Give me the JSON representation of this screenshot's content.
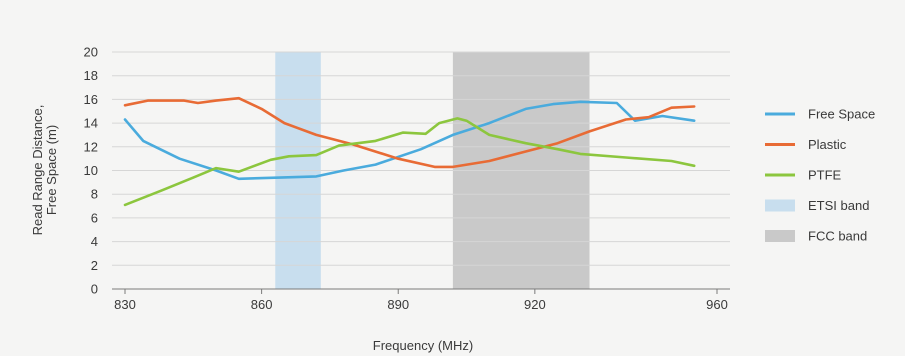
{
  "chart_data": {
    "type": "line",
    "xlabel": "Frequency (MHz)",
    "ylabel_lines": [
      "Read Range Distance,",
      "Free Space (m)"
    ],
    "xlim": [
      825,
      962
    ],
    "ylim": [
      0,
      20
    ],
    "xticks": [
      830,
      860,
      890,
      920,
      960
    ],
    "yticks": [
      0,
      2,
      4,
      6,
      8,
      10,
      12,
      14,
      16,
      18,
      20
    ],
    "grid": true,
    "legend_position": "right",
    "bands": [
      {
        "name": "ETSI band",
        "from": 863,
        "to": 873,
        "color": "#c8deee"
      },
      {
        "name": "FCC band",
        "from": 902,
        "to": 932,
        "color": "#c9c9c9"
      }
    ],
    "series": [
      {
        "name": "Free Space",
        "color": "#4aabdd",
        "x": [
          830,
          834,
          842,
          850,
          855,
          864,
          872,
          878,
          885,
          895,
          902,
          910,
          918,
          924,
          930,
          938,
          942,
          948,
          955
        ],
        "y": [
          14.3,
          12.5,
          11.0,
          10.0,
          9.3,
          9.4,
          9.5,
          10.0,
          10.5,
          11.8,
          13.0,
          14.0,
          15.2,
          15.6,
          15.8,
          15.7,
          14.2,
          14.6,
          14.2
        ]
      },
      {
        "name": "Plastic",
        "color": "#e86b35",
        "x": [
          830,
          835,
          840,
          843,
          846,
          850,
          855,
          860,
          865,
          872,
          880,
          890,
          898,
          902,
          910,
          918,
          925,
          932,
          940,
          945,
          950,
          955
        ],
        "y": [
          15.5,
          15.9,
          15.9,
          15.9,
          15.7,
          15.9,
          16.1,
          15.2,
          14.0,
          13.0,
          12.2,
          11.0,
          10.3,
          10.3,
          10.8,
          11.6,
          12.3,
          13.3,
          14.3,
          14.5,
          15.3,
          15.4
        ]
      },
      {
        "name": "PTFE",
        "color": "#8cc63e",
        "x": [
          830,
          838,
          845,
          850,
          855,
          862,
          866,
          872,
          877,
          885,
          891,
          896,
          899,
          903,
          905,
          910,
          918,
          925,
          930,
          940,
          950,
          955
        ],
        "y": [
          7.1,
          8.3,
          9.4,
          10.2,
          9.9,
          10.9,
          11.2,
          11.3,
          12.1,
          12.5,
          13.2,
          13.1,
          14.0,
          14.4,
          14.2,
          13.0,
          12.3,
          11.8,
          11.4,
          11.1,
          10.8,
          10.4
        ]
      }
    ]
  }
}
